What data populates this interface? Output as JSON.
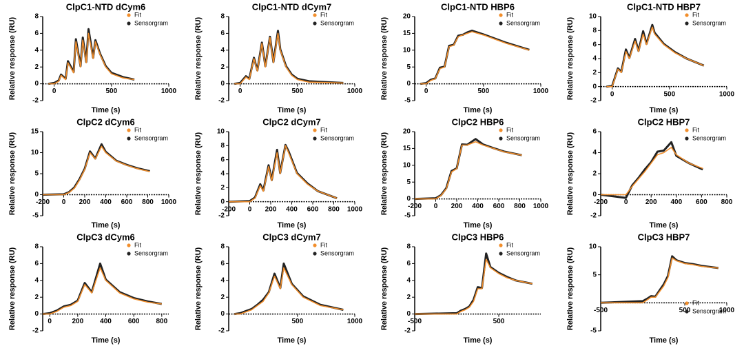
{
  "chart_data": [
    {
      "type": "line",
      "title": "ClpC1-NTD dCym6",
      "xlabel": "Time (s)",
      "ylabel": "Relative response (RU)",
      "legend": "upper right",
      "x": [
        -50,
        0,
        40,
        60,
        100,
        120,
        170,
        190,
        230,
        250,
        280,
        300,
        340,
        360,
        400,
        450,
        500,
        600,
        700
      ],
      "series": [
        {
          "name": "Fit",
          "color": "#f28e2b",
          "values": [
            0,
            0,
            0.3,
            1,
            0.5,
            2.5,
            1.3,
            5,
            2,
            5.2,
            2.5,
            6,
            3,
            5,
            3.5,
            2,
            1.2,
            0.7,
            0.5
          ]
        },
        {
          "name": "Sensorgram",
          "color": "#222222",
          "values": [
            0,
            0.1,
            0.4,
            1.1,
            0.6,
            2.7,
            1.4,
            5.3,
            2.1,
            5.5,
            2.6,
            6.5,
            3.1,
            5.2,
            3.6,
            2.1,
            1.3,
            0.8,
            0.5
          ]
        }
      ],
      "xlim": [
        -100,
        1000
      ],
      "xticks": [
        0,
        500,
        1000
      ],
      "ylim": [
        -2,
        8
      ],
      "yticks": [
        -2,
        0,
        2,
        4,
        6,
        8
      ]
    },
    {
      "type": "line",
      "title": "ClpC1-NTD dCym7",
      "xlabel": "Time (s)",
      "ylabel": "Relative response (RU)",
      "legend": "upper right",
      "x": [
        -50,
        0,
        50,
        80,
        120,
        150,
        190,
        220,
        260,
        290,
        330,
        350,
        400,
        450,
        500,
        600,
        900
      ],
      "series": [
        {
          "name": "Fit",
          "color": "#f28e2b",
          "values": [
            0,
            0,
            0.8,
            0.5,
            3,
            1.5,
            4.8,
            2,
            5.5,
            2.5,
            6,
            4,
            2,
            1,
            0.5,
            0.2,
            0.1
          ]
        },
        {
          "name": "Sensorgram",
          "color": "#222222",
          "values": [
            0,
            0.1,
            0.9,
            0.6,
            3.1,
            1.6,
            4.9,
            2.1,
            5.6,
            2.6,
            6.3,
            4.1,
            2.1,
            1.1,
            0.6,
            0.3,
            0.1
          ]
        }
      ],
      "xlim": [
        -100,
        1000
      ],
      "xticks": [
        0,
        500,
        1000
      ],
      "ylim": [
        -2,
        8
      ],
      "yticks": [
        -2,
        0,
        2,
        4,
        6,
        8
      ]
    },
    {
      "type": "line",
      "title": "ClpC1-NTD HBP6",
      "xlabel": "Time (s)",
      "ylabel": "Relative response (RU)",
      "legend": "upper right",
      "x": [
        -50,
        0,
        40,
        80,
        120,
        160,
        200,
        240,
        280,
        320,
        360,
        400,
        500,
        700,
        900
      ],
      "series": [
        {
          "name": "Fit",
          "color": "#f28e2b",
          "values": [
            0,
            0,
            1,
            1.5,
            4.5,
            5,
            11,
            11.5,
            14,
            14.5,
            15,
            15.5,
            14.5,
            12,
            10
          ]
        },
        {
          "name": "Sensorgram",
          "color": "#222222",
          "values": [
            0,
            0.2,
            1.2,
            1.6,
            4.8,
            5.1,
            11.3,
            11.6,
            14.3,
            14.6,
            15.3,
            15.8,
            14.7,
            12.2,
            10.1
          ]
        }
      ],
      "xlim": [
        -100,
        1000
      ],
      "xticks": [
        0,
        500,
        1000
      ],
      "ylim": [
        -5,
        20
      ],
      "yticks": [
        -5,
        0,
        5,
        10,
        15,
        20
      ]
    },
    {
      "type": "line",
      "title": "ClpC1-NTD HBP7",
      "xlabel": "Time (s)",
      "ylabel": "Relative response (RU)",
      "legend": "upper right",
      "x": [
        -50,
        0,
        50,
        80,
        120,
        150,
        200,
        230,
        270,
        300,
        350,
        370,
        450,
        550,
        650,
        800
      ],
      "series": [
        {
          "name": "Fit",
          "color": "#f28e2b",
          "values": [
            0,
            0,
            2.5,
            2,
            5,
            4,
            6.5,
            5,
            7.5,
            6,
            8.5,
            7.5,
            6,
            4.8,
            4,
            3
          ]
        },
        {
          "name": "Sensorgram",
          "color": "#222222",
          "values": [
            0,
            0.1,
            2.6,
            2.1,
            5.3,
            4.1,
            6.8,
            5.1,
            7.9,
            6.1,
            8.8,
            7.7,
            6.1,
            4.9,
            4,
            3
          ]
        }
      ],
      "xlim": [
        -100,
        1000
      ],
      "xticks": [
        0,
        500,
        1000
      ],
      "ylim": [
        -2,
        10
      ],
      "yticks": [
        -2,
        0,
        2,
        4,
        6,
        8,
        10
      ]
    },
    {
      "type": "line",
      "title": "ClpC2 dCym6",
      "xlabel": "Time (s)",
      "ylabel": "Relative response (RU)",
      "legend": "upper right",
      "x": [
        -200,
        0,
        50,
        100,
        150,
        200,
        250,
        300,
        360,
        400,
        500,
        600,
        700,
        820
      ],
      "series": [
        {
          "name": "Fit",
          "color": "#f28e2b",
          "values": [
            0,
            0,
            0.5,
            1.5,
            3.5,
            6,
            10,
            8.5,
            11.5,
            10,
            8,
            7,
            6.2,
            5.5
          ]
        },
        {
          "name": "Sensorgram",
          "color": "#222222",
          "values": [
            0,
            0.1,
            0.6,
            1.7,
            3.7,
            6.2,
            10.3,
            8.6,
            12,
            10.2,
            8.1,
            7.1,
            6.3,
            5.6
          ]
        }
      ],
      "xlim": [
        -200,
        1000
      ],
      "xticks": [
        -200,
        0,
        200,
        400,
        600,
        800,
        1000
      ],
      "ylim": [
        -5,
        15
      ],
      "yticks": [
        -5,
        0,
        5,
        10,
        15
      ]
    },
    {
      "type": "line",
      "title": "ClpC2 dCym7",
      "xlabel": "Time (s)",
      "ylabel": "Relative response (RU)",
      "legend": "upper right",
      "x": [
        -200,
        0,
        50,
        100,
        130,
        180,
        210,
        260,
        290,
        340,
        370,
        450,
        550,
        650,
        830
      ],
      "series": [
        {
          "name": "Fit",
          "color": "#f28e2b",
          "values": [
            0,
            0,
            0.5,
            2.3,
            1.5,
            5,
            3,
            7,
            4,
            8,
            7,
            4,
            2.5,
            1.5,
            0.5
          ]
        },
        {
          "name": "Sensorgram",
          "color": "#222222",
          "values": [
            0,
            0.1,
            0.6,
            2.5,
            1.6,
            5.2,
            3.1,
            7.4,
            4.1,
            8.1,
            7.2,
            4.1,
            2.6,
            1.5,
            0.5
          ]
        }
      ],
      "xlim": [
        -200,
        1000
      ],
      "xticks": [
        -200,
        0,
        200,
        400,
        600,
        800,
        1000
      ],
      "ylim": [
        -2,
        10
      ],
      "yticks": [
        -2,
        0,
        2,
        4,
        6,
        8,
        10
      ]
    },
    {
      "type": "line",
      "title": "ClpC2 HBP6",
      "xlabel": "Time (s)",
      "ylabel": "Relative response (RU)",
      "legend": "upper right",
      "x": [
        -200,
        0,
        50,
        100,
        150,
        200,
        250,
        300,
        380,
        450,
        550,
        650,
        820
      ],
      "series": [
        {
          "name": "Fit",
          "color": "#f28e2b",
          "values": [
            0,
            0,
            1,
            3,
            8,
            9,
            16,
            16,
            17,
            16,
            15,
            14,
            13
          ]
        },
        {
          "name": "Sensorgram",
          "color": "#222222",
          "values": [
            0,
            0.2,
            1.1,
            3.2,
            8.3,
            9.1,
            16.2,
            16.1,
            17.8,
            16.2,
            15.1,
            14.1,
            13
          ]
        }
      ],
      "xlim": [
        -200,
        1000
      ],
      "xticks": [
        -200,
        0,
        200,
        400,
        600,
        800,
        1000
      ],
      "ylim": [
        -5,
        20
      ],
      "yticks": [
        -5,
        0,
        5,
        10,
        15,
        20
      ]
    },
    {
      "type": "line",
      "title": "ClpC2 HBP7",
      "xlabel": "Time (s)",
      "ylabel": "Relative response (RU)",
      "legend": "upper right",
      "x": [
        -200,
        0,
        50,
        100,
        150,
        200,
        250,
        300,
        360,
        400,
        500,
        610
      ],
      "series": [
        {
          "name": "Fit",
          "color": "#f28e2b",
          "values": [
            0,
            0,
            0.8,
            1.5,
            2.2,
            3,
            3.8,
            4,
            4.5,
            3.8,
            3,
            2.5
          ]
        },
        {
          "name": "Sensorgram",
          "color": "#222222",
          "values": [
            0,
            -0.3,
            0.9,
            1.6,
            2.4,
            3.1,
            4.1,
            4.2,
            5,
            3.7,
            3,
            2.4
          ]
        }
      ],
      "xlim": [
        -200,
        800
      ],
      "xticks": [
        -200,
        0,
        200,
        400,
        600,
        800
      ],
      "ylim": [
        -2,
        6
      ],
      "yticks": [
        -2,
        0,
        2,
        4,
        6
      ]
    },
    {
      "type": "line",
      "title": "ClpC3 dCym6",
      "xlabel": "Time (s)",
      "ylabel": "Relative response (RU)",
      "legend": "upper right",
      "x": [
        -50,
        0,
        50,
        100,
        150,
        200,
        250,
        300,
        360,
        400,
        500,
        600,
        700,
        800
      ],
      "series": [
        {
          "name": "Fit",
          "color": "#f28e2b",
          "values": [
            0,
            0,
            0.3,
            0.8,
            1,
            1.5,
            3.5,
            2.5,
            5.5,
            4,
            2.5,
            1.8,
            1.4,
            1.2
          ]
        },
        {
          "name": "Sensorgram",
          "color": "#222222",
          "values": [
            0,
            0.1,
            0.4,
            0.9,
            1.1,
            1.6,
            3.7,
            2.6,
            6,
            4.1,
            2.6,
            1.9,
            1.5,
            1.2
          ]
        }
      ],
      "xlim": [
        -50,
        850
      ],
      "xticks": [
        0,
        200,
        400,
        600,
        800
      ],
      "ylim": [
        -2,
        8
      ],
      "yticks": [
        -2,
        0,
        2,
        4,
        6,
        8
      ]
    },
    {
      "type": "line",
      "title": "ClpC3 dCym7",
      "xlabel": "Time (s)",
      "ylabel": "Relative response (RU)",
      "legend": "upper right",
      "x": [
        -50,
        0,
        100,
        150,
        200,
        250,
        300,
        350,
        380,
        450,
        550,
        700,
        900
      ],
      "series": [
        {
          "name": "Fit",
          "color": "#f28e2b",
          "values": [
            0,
            0,
            0.5,
            1,
            1.5,
            2.5,
            4.5,
            3,
            5.5,
            3.5,
            2,
            1,
            0.5
          ]
        },
        {
          "name": "Sensorgram",
          "color": "#222222",
          "values": [
            0,
            0.1,
            0.6,
            1.1,
            1.7,
            2.6,
            4.8,
            3.1,
            6,
            3.6,
            2.1,
            1.1,
            0.5
          ]
        }
      ],
      "xlim": [
        -100,
        1000
      ],
      "xticks": [
        500,
        1000
      ],
      "ylim": [
        -2,
        8
      ],
      "yticks": [
        -2,
        0,
        2,
        4,
        6,
        8
      ]
    },
    {
      "type": "line",
      "title": "ClpC3 HBP6",
      "xlabel": "Time (s)",
      "ylabel": "Relative response (RU)",
      "legend": "upper right",
      "x": [
        -500,
        0,
        50,
        100,
        150,
        200,
        250,
        300,
        350,
        400,
        500,
        600,
        700,
        900
      ],
      "series": [
        {
          "name": "Fit",
          "color": "#f28e2b",
          "values": [
            0,
            0,
            0.3,
            0.5,
            0.8,
            1.5,
            3,
            3,
            6.5,
            5.5,
            4.8,
            4.3,
            4,
            3.6
          ]
        },
        {
          "name": "Sensorgram",
          "color": "#222222",
          "values": [
            0,
            0.1,
            0.4,
            0.6,
            0.9,
            1.7,
            3.2,
            3.1,
            7.2,
            5.6,
            4.9,
            4.4,
            4,
            3.6
          ]
        }
      ],
      "xlim": [
        -500,
        1000
      ],
      "xticks": [
        -500,
        500
      ],
      "ylim": [
        -2,
        8
      ],
      "yticks": [
        -2,
        0,
        2,
        4,
        6,
        8
      ]
    },
    {
      "type": "line",
      "title": "ClpC3 HBP7",
      "xlabel": "Time (s)",
      "ylabel": "Relative response (RU)",
      "legend": "lower right",
      "x": [
        -500,
        0,
        50,
        100,
        150,
        200,
        250,
        300,
        350,
        400,
        500,
        600,
        700,
        900
      ],
      "series": [
        {
          "name": "Fit",
          "color": "#f28e2b",
          "values": [
            0,
            0,
            0.5,
            1,
            1,
            2,
            3,
            4.5,
            8,
            7.5,
            7,
            6.8,
            6.5,
            6.2
          ]
        },
        {
          "name": "Sensorgram",
          "color": "#222222",
          "values": [
            0,
            0.3,
            0.7,
            1.2,
            1.1,
            2.2,
            3.3,
            4.8,
            8.3,
            7.6,
            7.1,
            6.9,
            6.6,
            6.2
          ]
        }
      ],
      "xlim": [
        -500,
        1000
      ],
      "xticks": [
        -500,
        500,
        1000
      ],
      "ylim": [
        -5,
        10
      ],
      "yticks": [
        -5,
        5,
        10
      ]
    }
  ]
}
